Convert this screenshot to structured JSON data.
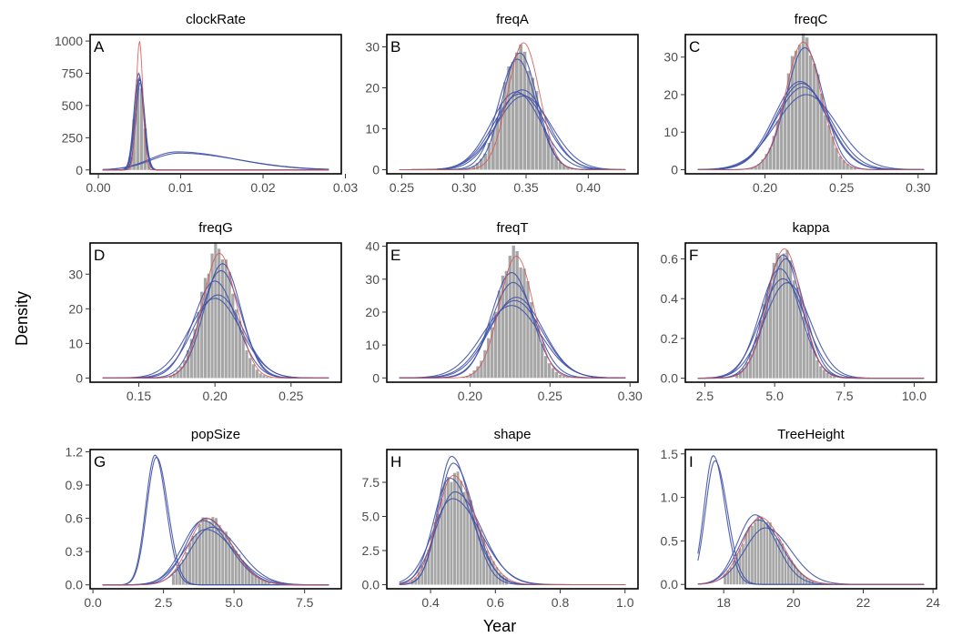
{
  "figure": {
    "ylabel": "Density",
    "xlabel": "Year"
  },
  "colors": {
    "histogram": "#a6a6a6",
    "prior_curve": "#d9534f",
    "posterior_curves": "#3f51a8"
  },
  "chart_data": [
    {
      "type": "histogram-density",
      "letter": "A",
      "title": "clockRate",
      "xlim": [
        -0.001,
        0.0295
      ],
      "ylim": [
        -30,
        1050
      ],
      "xticks": [
        0.0,
        0.01,
        0.02,
        0.03
      ],
      "xtick_labels": [
        "0.00",
        "0.01",
        "0.02",
        "0.03"
      ],
      "yticks": [
        0,
        250,
        500,
        750,
        1000
      ],
      "ytick_labels": [
        "0",
        "250",
        "500",
        "750",
        "1000"
      ],
      "hist": {
        "mean": 0.005,
        "sd": 0.00055,
        "peak": 740,
        "from": 0.0032,
        "to": 0.0078,
        "bins": 10
      },
      "prior_curves": [
        {
          "mean": 0.005,
          "sd": 0.0004,
          "peak": 1000
        }
      ],
      "posterior_curves": [
        {
          "mean": 0.005,
          "sd": 0.00055,
          "peak": 720
        },
        {
          "mean": 0.005,
          "sd": 0.0006,
          "peak": 700
        },
        {
          "mean": 0.0049,
          "sd": 0.00057,
          "peak": 750
        },
        {
          "mean": 0.0051,
          "sd": 0.00053,
          "peak": 680
        },
        {
          "mean": 0.0095,
          "sd": 0.0032,
          "peak": 140,
          "skew": 2.2
        },
        {
          "mean": 0.0098,
          "sd": 0.0033,
          "peak": 130,
          "skew": 2.2
        }
      ]
    },
    {
      "type": "histogram-density",
      "letter": "B",
      "title": "freqA",
      "xlim": [
        0.238,
        0.44
      ],
      "ylim": [
        -1,
        33
      ],
      "xticks": [
        0.25,
        0.3,
        0.35,
        0.4
      ],
      "xtick_labels": [
        "0.25",
        "0.30",
        "0.35",
        "0.40"
      ],
      "yticks": [
        0,
        10,
        20,
        30
      ],
      "ytick_labels": [
        "0",
        "10",
        "20",
        "30"
      ],
      "hist": {
        "mean": 0.345,
        "sd": 0.014,
        "peak": 29,
        "from": 0.3,
        "to": 0.395,
        "bins": 30
      },
      "prior_curves": [
        {
          "mean": 0.348,
          "sd": 0.0128,
          "peak": 31
        }
      ],
      "posterior_curves": [
        {
          "mean": 0.345,
          "sd": 0.014,
          "peak": 28.5
        },
        {
          "mean": 0.343,
          "sd": 0.015,
          "peak": 27
        },
        {
          "mean": 0.347,
          "sd": 0.02,
          "peak": 19.5
        },
        {
          "mean": 0.345,
          "sd": 0.021,
          "peak": 18.5
        },
        {
          "mean": 0.348,
          "sd": 0.022,
          "peak": 18
        },
        {
          "mean": 0.342,
          "sd": 0.02,
          "peak": 19
        }
      ]
    },
    {
      "type": "histogram-density",
      "letter": "C",
      "title": "freqC",
      "xlim": [
        0.148,
        0.312
      ],
      "ylim": [
        -1.1,
        36
      ],
      "xticks": [
        0.2,
        0.25,
        0.3
      ],
      "xtick_labels": [
        "0.20",
        "0.25",
        "0.30"
      ],
      "yticks": [
        0,
        10,
        20,
        30
      ],
      "ytick_labels": [
        "0",
        "10",
        "20",
        "30"
      ],
      "hist": {
        "mean": 0.225,
        "sd": 0.0115,
        "peak": 34.5,
        "from": 0.188,
        "to": 0.26,
        "bins": 30
      },
      "prior_curves": [
        {
          "mean": 0.225,
          "sd": 0.0115,
          "peak": 34
        }
      ],
      "posterior_curves": [
        {
          "mean": 0.226,
          "sd": 0.012,
          "peak": 32.5
        },
        {
          "mean": 0.223,
          "sd": 0.017,
          "peak": 23.5
        },
        {
          "mean": 0.225,
          "sd": 0.018,
          "peak": 22
        },
        {
          "mean": 0.227,
          "sd": 0.02,
          "peak": 20
        },
        {
          "mean": 0.224,
          "sd": 0.017,
          "peak": 23
        }
      ]
    },
    {
      "type": "histogram-density",
      "letter": "D",
      "title": "freqG",
      "xlim": [
        0.118,
        0.283
      ],
      "ylim": [
        -1.2,
        39
      ],
      "xticks": [
        0.15,
        0.2,
        0.25
      ],
      "xtick_labels": [
        "0.15",
        "0.20",
        "0.25"
      ],
      "yticks": [
        0,
        10,
        20,
        30
      ],
      "ytick_labels": [
        "0",
        "10",
        "20",
        "30"
      ],
      "hist": {
        "mean": 0.202,
        "sd": 0.011,
        "peak": 37,
        "from": 0.17,
        "to": 0.238,
        "bins": 30
      },
      "prior_curves": [
        {
          "mean": 0.203,
          "sd": 0.011,
          "peak": 36
        }
      ],
      "posterior_curves": [
        {
          "mean": 0.205,
          "sd": 0.012,
          "peak": 33
        },
        {
          "mean": 0.204,
          "sd": 0.013,
          "peak": 31
        },
        {
          "mean": 0.2,
          "sd": 0.014,
          "peak": 28
        },
        {
          "mean": 0.202,
          "sd": 0.016,
          "peak": 24
        },
        {
          "mean": 0.2,
          "sd": 0.017,
          "peak": 23
        }
      ]
    },
    {
      "type": "histogram-density",
      "letter": "E",
      "title": "freqT",
      "xlim": [
        0.148,
        0.305
      ],
      "ylim": [
        -1.3,
        41
      ],
      "xticks": [
        0.2,
        0.25,
        0.3
      ],
      "xtick_labels": [
        "0.20",
        "0.25",
        "0.30"
      ],
      "yticks": [
        0,
        10,
        20,
        30,
        40
      ],
      "ytick_labels": [
        "0",
        "10",
        "20",
        "30",
        "40"
      ],
      "hist": {
        "mean": 0.228,
        "sd": 0.0105,
        "peak": 38,
        "from": 0.195,
        "to": 0.262,
        "bins": 30
      },
      "prior_curves": [
        {
          "mean": 0.229,
          "sd": 0.0105,
          "peak": 37
        }
      ],
      "posterior_curves": [
        {
          "mean": 0.226,
          "sd": 0.0125,
          "peak": 32
        },
        {
          "mean": 0.227,
          "sd": 0.0135,
          "peak": 29
        },
        {
          "mean": 0.228,
          "sd": 0.017,
          "peak": 23.5
        },
        {
          "mean": 0.226,
          "sd": 0.018,
          "peak": 22
        },
        {
          "mean": 0.229,
          "sd": 0.0165,
          "peak": 24.5
        }
      ]
    },
    {
      "type": "histogram-density",
      "letter": "F",
      "title": "kappa",
      "xlim": [
        1.8,
        10.8
      ],
      "ylim": [
        -0.02,
        0.68
      ],
      "xticks": [
        2.5,
        5.0,
        7.5,
        10.0
      ],
      "xtick_labels": [
        "2.5",
        "5.0",
        "7.5",
        "10.0"
      ],
      "yticks": [
        0,
        0.2,
        0.4,
        0.6
      ],
      "ytick_labels": [
        "0.0",
        "0.2",
        "0.4",
        "0.6"
      ],
      "hist": {
        "mean": 5.3,
        "sd": 0.63,
        "peak": 0.63,
        "from": 3.6,
        "to": 7.2,
        "bins": 30
      },
      "prior_curves": [
        {
          "mean": 5.35,
          "sd": 0.62,
          "peak": 0.65
        }
      ],
      "posterior_curves": [
        {
          "mean": 5.3,
          "sd": 0.65,
          "peak": 0.62
        },
        {
          "mean": 5.4,
          "sd": 0.66,
          "peak": 0.6
        },
        {
          "mean": 5.2,
          "sd": 0.72,
          "peak": 0.55
        },
        {
          "mean": 5.3,
          "sd": 0.8,
          "peak": 0.5
        },
        {
          "mean": 5.45,
          "sd": 0.82,
          "peak": 0.48
        }
      ]
    },
    {
      "type": "histogram-density",
      "letter": "G",
      "title": "popSize",
      "xlim": [
        -0.1,
        8.8
      ],
      "ylim": [
        -0.035,
        1.22
      ],
      "xticks": [
        0.0,
        2.5,
        5.0,
        7.5
      ],
      "xtick_labels": [
        "0.0",
        "2.5",
        "5.0",
        "7.5"
      ],
      "yticks": [
        0,
        0.3,
        0.6,
        0.9,
        1.2
      ],
      "ytick_labels": [
        "0.0",
        "0.3",
        "0.6",
        "0.9",
        "1.2"
      ],
      "hist": {
        "mean": 4.1,
        "sd": 0.65,
        "peak": 0.6,
        "from": 2.8,
        "to": 6.3,
        "bins": 30,
        "skew": 1.3
      },
      "prior_curves": [
        {
          "mean": 4.05,
          "sd": 0.66,
          "peak": 0.6,
          "skew": 1.3
        }
      ],
      "posterior_curves": [
        {
          "mean": 2.2,
          "sd": 0.33,
          "peak": 1.17,
          "skew": 1.2
        },
        {
          "mean": 2.25,
          "sd": 0.34,
          "peak": 1.15,
          "skew": 1.2
        },
        {
          "mean": 4.0,
          "sd": 0.7,
          "peak": 0.6,
          "skew": 1.3
        },
        {
          "mean": 3.9,
          "sd": 0.72,
          "peak": 0.58,
          "skew": 1.3
        },
        {
          "mean": 4.2,
          "sd": 0.75,
          "peak": 0.52,
          "skew": 1.3
        },
        {
          "mean": 4.0,
          "sd": 0.78,
          "peak": 0.5,
          "skew": 1.3
        }
      ]
    },
    {
      "type": "histogram-density",
      "letter": "H",
      "title": "shape",
      "xlim": [
        0.265,
        1.04
      ],
      "ylim": [
        -0.3,
        9.9
      ],
      "xticks": [
        0.4,
        0.6,
        0.8,
        1.0
      ],
      "xtick_labels": [
        "0.4",
        "0.6",
        "0.8",
        "1.0"
      ],
      "yticks": [
        0,
        2.5,
        5.0,
        7.5
      ],
      "ytick_labels": [
        "0.0",
        "2.5",
        "5.0",
        "7.5"
      ],
      "hist": {
        "mean": 0.47,
        "sd": 0.05,
        "peak": 8.0,
        "from": 0.34,
        "to": 0.64,
        "bins": 30,
        "skew": 1.4
      },
      "prior_curves": [
        {
          "mean": 0.47,
          "sd": 0.05,
          "peak": 8.0,
          "skew": 1.4
        }
      ],
      "posterior_curves": [
        {
          "mean": 0.465,
          "sd": 0.042,
          "peak": 9.4,
          "skew": 1.4
        },
        {
          "mean": 0.47,
          "sd": 0.045,
          "peak": 8.9,
          "skew": 1.4
        },
        {
          "mean": 0.46,
          "sd": 0.05,
          "peak": 7.8,
          "skew": 1.4
        },
        {
          "mean": 0.475,
          "sd": 0.058,
          "peak": 6.8,
          "skew": 1.4
        },
        {
          "mean": 0.468,
          "sd": 0.062,
          "peak": 6.3,
          "skew": 1.4
        }
      ]
    },
    {
      "type": "histogram-density",
      "letter": "I",
      "title": "TreeHeight",
      "xlim": [
        16.9,
        24.1
      ],
      "ylim": [
        -0.05,
        1.55
      ],
      "xticks": [
        18,
        20,
        22,
        24
      ],
      "xtick_labels": [
        "18",
        "20",
        "22",
        "24"
      ],
      "yticks": [
        0,
        0.5,
        1.0,
        1.5
      ],
      "ytick_labels": [
        "0.0",
        "0.5",
        "1.0",
        "1.5"
      ],
      "hist": {
        "mean": 19.05,
        "sd": 0.52,
        "peak": 0.75,
        "from": 18.0,
        "to": 20.6,
        "bins": 30,
        "skew": 1.2
      },
      "prior_curves": [
        {
          "mean": 19.05,
          "sd": 0.52,
          "peak": 0.77,
          "skew": 1.2
        }
      ],
      "posterior_curves": [
        {
          "mean": 17.7,
          "sd": 0.26,
          "peak": 1.48,
          "skew": 1.3
        },
        {
          "mean": 17.75,
          "sd": 0.27,
          "peak": 1.42,
          "skew": 1.3
        },
        {
          "mean": 18.9,
          "sd": 0.5,
          "peak": 0.8,
          "skew": 1.2
        },
        {
          "mean": 19.0,
          "sd": 0.54,
          "peak": 0.74,
          "skew": 1.2
        },
        {
          "mean": 19.2,
          "sd": 0.6,
          "peak": 0.65,
          "skew": 1.2
        }
      ]
    }
  ]
}
